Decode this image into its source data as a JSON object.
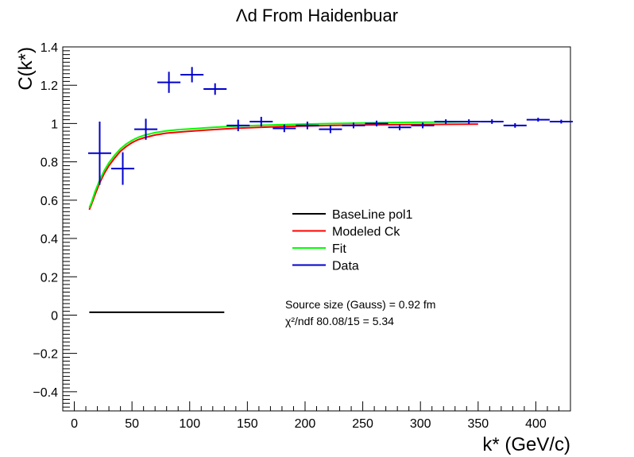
{
  "chart_data": {
    "type": "scatter",
    "title": "Λd From Haidenbuar",
    "xlabel": "k* (GeV/c)",
    "ylabel": "C(k*)",
    "xlim": [
      -10,
      430
    ],
    "ylim": [
      -0.5,
      1.4
    ],
    "xticks": [
      0,
      50,
      100,
      150,
      200,
      250,
      300,
      350,
      400
    ],
    "yticks": [
      -0.4,
      -0.2,
      0,
      0.2,
      0.4,
      0.6,
      0.8,
      1,
      1.2,
      1.4
    ],
    "xtick_labels": [
      "0",
      "50",
      "100",
      "150",
      "200",
      "250",
      "300",
      "350",
      "400"
    ],
    "ytick_labels": [
      "−0.4",
      "−0.2",
      "0",
      "0.2",
      "0.4",
      "0.6",
      "0.8",
      "1",
      "1.2",
      "1.4"
    ],
    "grid": false,
    "legend_position": "center-right",
    "legend": [
      {
        "label": "BaseLine pol1",
        "color": "#000000"
      },
      {
        "label": "Modeled Ck",
        "color": "#ff0000"
      },
      {
        "label": "Fit",
        "color": "#00ff00"
      },
      {
        "label": "Data",
        "color": "#0000cc"
      }
    ],
    "annotations": [
      {
        "text": "Source size (Gauss) = 0.92 fm"
      },
      {
        "text": "χ²/ndf 80.08/15 = 5.34"
      }
    ],
    "series": [
      {
        "name": "BaseLine pol1",
        "kind": "line",
        "color": "#000000",
        "x": [
          13,
          130
        ],
        "y": [
          0.015,
          0.015
        ]
      },
      {
        "name": "Modeled Ck",
        "kind": "line",
        "color": "#ff0000",
        "x": [
          13,
          15,
          18,
          22,
          26,
          30,
          35,
          40,
          45,
          50,
          55,
          60,
          70,
          80,
          90,
          100,
          120,
          140,
          160,
          180,
          200,
          225,
          250,
          275,
          300,
          325,
          350
        ],
        "y": [
          0.55,
          0.58,
          0.63,
          0.69,
          0.74,
          0.78,
          0.82,
          0.855,
          0.88,
          0.9,
          0.915,
          0.925,
          0.94,
          0.95,
          0.955,
          0.96,
          0.968,
          0.975,
          0.98,
          0.984,
          0.987,
          0.99,
          0.992,
          0.994,
          0.995,
          0.996,
          0.997
        ]
      },
      {
        "name": "Fit",
        "kind": "line",
        "color": "#00ff00",
        "x": [
          13,
          15,
          18,
          22,
          26,
          30,
          35,
          40,
          45,
          50,
          55,
          60,
          70,
          80,
          90,
          100,
          120,
          140,
          160,
          180,
          200,
          225,
          250,
          275,
          300,
          325,
          350
        ],
        "y": [
          0.56,
          0.59,
          0.645,
          0.705,
          0.755,
          0.795,
          0.835,
          0.868,
          0.893,
          0.912,
          0.927,
          0.938,
          0.953,
          0.962,
          0.968,
          0.972,
          0.98,
          0.986,
          0.99,
          0.994,
          0.997,
          1.0,
          1.003,
          1.005,
          1.007,
          1.008,
          1.01
        ]
      },
      {
        "name": "Data",
        "kind": "errorbar",
        "color": "#0000cc",
        "x": [
          22,
          42,
          62,
          82,
          102,
          122,
          142,
          162,
          182,
          202,
          222,
          242,
          262,
          282,
          302,
          322,
          342,
          362,
          382,
          402,
          422
        ],
        "y": [
          0.845,
          0.765,
          0.97,
          1.215,
          1.255,
          1.18,
          0.99,
          1.01,
          0.975,
          0.99,
          0.97,
          0.99,
          1.0,
          0.98,
          0.99,
          1.01,
          1.01,
          1.01,
          0.99,
          1.02,
          1.01
        ],
        "xerr": [
          10,
          10,
          10,
          10,
          10,
          10,
          10,
          10,
          10,
          10,
          10,
          10,
          10,
          10,
          10,
          10,
          10,
          10,
          10,
          10,
          10
        ],
        "yerr": [
          0.165,
          0.085,
          0.055,
          0.055,
          0.04,
          0.03,
          0.03,
          0.025,
          0.02,
          0.02,
          0.02,
          0.015,
          0.015,
          0.015,
          0.015,
          0.012,
          0.012,
          0.012,
          0.012,
          0.01,
          0.01
        ]
      }
    ]
  }
}
